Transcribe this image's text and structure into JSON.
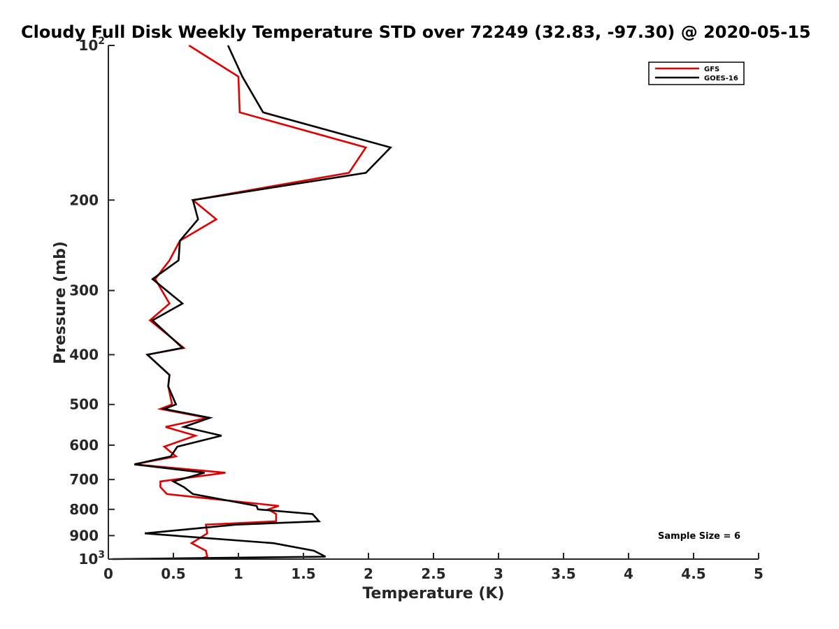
{
  "chart_data": {
    "type": "line",
    "title": "Cloudy Full Disk Weekly Temperature STD over 72249 (32.83, -97.30) @ 2020-05-15",
    "xlabel": "Temperature (K)",
    "ylabel": "Pressure (mb)",
    "xlim": [
      0,
      5
    ],
    "ylim": [
      1000,
      100
    ],
    "yscale": "log",
    "y_reversed": true,
    "grid": false,
    "legend_position": "top-right",
    "x_ticks": [
      "0",
      "0.5",
      "1",
      "1.5",
      "2",
      "2.5",
      "3",
      "3.5",
      "4",
      "4.5",
      "5"
    ],
    "y_ticks": [
      {
        "value": 100,
        "label": "10",
        "sup": "2"
      },
      {
        "value": 200,
        "label": "200",
        "sup": ""
      },
      {
        "value": 300,
        "label": "300",
        "sup": ""
      },
      {
        "value": 400,
        "label": "400",
        "sup": ""
      },
      {
        "value": 500,
        "label": "500",
        "sup": ""
      },
      {
        "value": 600,
        "label": "600",
        "sup": ""
      },
      {
        "value": 700,
        "label": "700",
        "sup": ""
      },
      {
        "value": 800,
        "label": "800",
        "sup": ""
      },
      {
        "value": 900,
        "label": "900",
        "sup": ""
      },
      {
        "value": 1000,
        "label": "10",
        "sup": "3"
      }
    ],
    "series": [
      {
        "name": "GFS",
        "color": "#e00000",
        "points": [
          [
            0.62,
            100
          ],
          [
            1.0,
            115
          ],
          [
            1.01,
            135
          ],
          [
            1.98,
            158
          ],
          [
            1.85,
            177
          ],
          [
            0.65,
            200
          ],
          [
            0.83,
            218
          ],
          [
            0.55,
            240
          ],
          [
            0.47,
            262
          ],
          [
            0.36,
            285
          ],
          [
            0.47,
            318
          ],
          [
            0.32,
            343
          ],
          [
            0.58,
            388
          ],
          [
            0.3,
            400
          ],
          [
            0.47,
            438
          ],
          [
            0.46,
            461
          ],
          [
            0.49,
            500
          ],
          [
            0.4,
            510
          ],
          [
            0.76,
            531
          ],
          [
            0.44,
            553
          ],
          [
            0.67,
            575
          ],
          [
            0.43,
            604
          ],
          [
            0.52,
            631
          ],
          [
            0.2,
            654
          ],
          [
            0.9,
            679
          ],
          [
            0.4,
            706
          ],
          [
            0.4,
            724
          ],
          [
            0.45,
            747
          ],
          [
            1.31,
            788
          ],
          [
            1.23,
            800
          ],
          [
            1.29,
            817
          ],
          [
            1.29,
            844
          ],
          [
            0.75,
            857
          ],
          [
            0.76,
            891
          ],
          [
            0.64,
            931
          ],
          [
            0.75,
            963
          ],
          [
            0.76,
            989
          ],
          [
            0.7,
            1000
          ]
        ]
      },
      {
        "name": "GOES-16",
        "color": "#000000",
        "points": [
          [
            0.92,
            100
          ],
          [
            1.03,
            115
          ],
          [
            1.19,
            135
          ],
          [
            2.17,
            158
          ],
          [
            1.98,
            177
          ],
          [
            0.65,
            200
          ],
          [
            0.69,
            218
          ],
          [
            0.55,
            240
          ],
          [
            0.54,
            262
          ],
          [
            0.34,
            285
          ],
          [
            0.57,
            318
          ],
          [
            0.34,
            343
          ],
          [
            0.57,
            388
          ],
          [
            0.3,
            400
          ],
          [
            0.47,
            438
          ],
          [
            0.46,
            461
          ],
          [
            0.52,
            500
          ],
          [
            0.43,
            510
          ],
          [
            0.78,
            531
          ],
          [
            0.58,
            553
          ],
          [
            0.87,
            575
          ],
          [
            0.53,
            604
          ],
          [
            0.48,
            631
          ],
          [
            0.2,
            654
          ],
          [
            0.74,
            679
          ],
          [
            0.5,
            706
          ],
          [
            0.58,
            724
          ],
          [
            0.65,
            747
          ],
          [
            1.14,
            788
          ],
          [
            1.15,
            800
          ],
          [
            1.57,
            817
          ],
          [
            1.62,
            844
          ],
          [
            0.98,
            857
          ],
          [
            0.28,
            891
          ],
          [
            1.27,
            931
          ],
          [
            1.58,
            963
          ],
          [
            1.67,
            989
          ],
          [
            0.03,
            1000
          ]
        ]
      }
    ],
    "annotations": [
      "Sample Size = 6"
    ]
  }
}
